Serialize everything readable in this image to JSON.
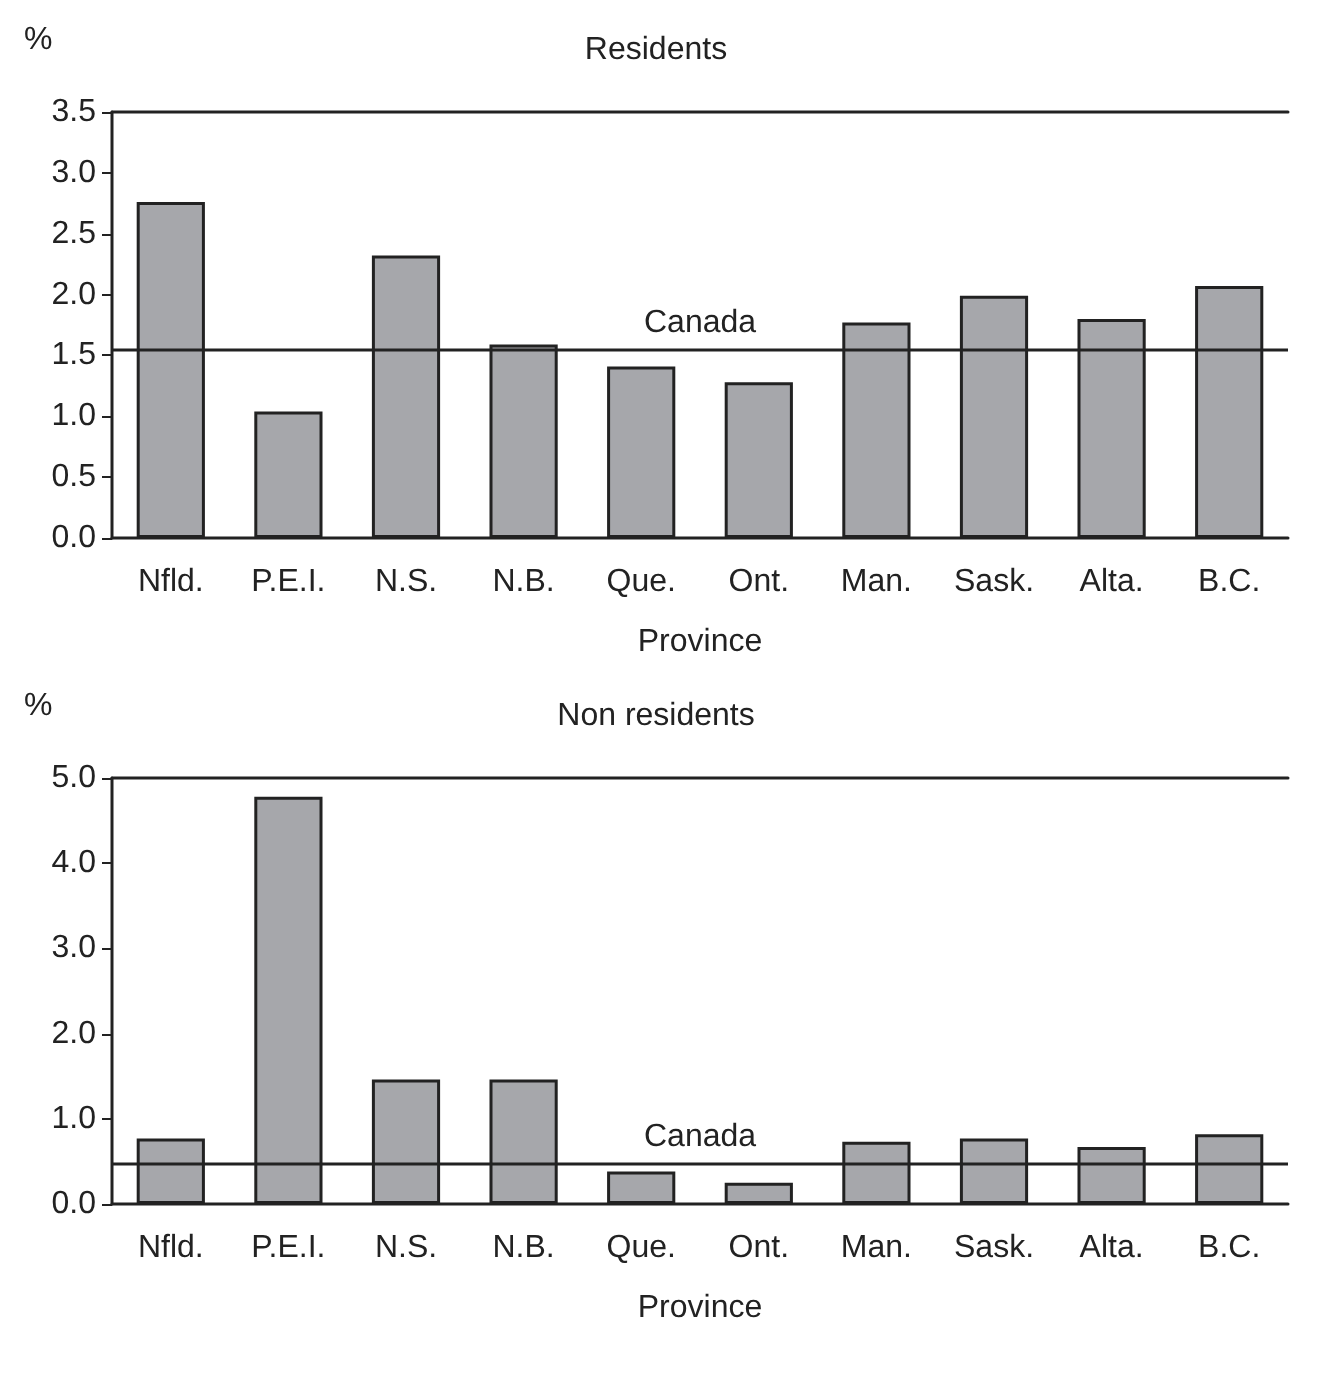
{
  "chart_data": [
    {
      "type": "bar",
      "title": "Residents",
      "xlabel": "Province",
      "ylabel": "%",
      "categories": [
        "Nfld.",
        "P.E.I.",
        "N.S.",
        "N.B.",
        "Que.",
        "Ont.",
        "Man.",
        "Sask.",
        "Alta.",
        "B.C."
      ],
      "values": [
        2.76,
        1.04,
        2.32,
        1.59,
        1.41,
        1.28,
        1.77,
        1.99,
        1.8,
        2.07
      ],
      "color": "#a6a7ab",
      "ylim": [
        0,
        3.5
      ],
      "yticks": [
        {
          "value": 0,
          "label": "0.0"
        },
        {
          "value": 0.5,
          "label": "0.5"
        },
        {
          "value": 1,
          "label": "1.0"
        },
        {
          "value": 1.5,
          "label": "1.5"
        },
        {
          "value": 2,
          "label": "2.0"
        },
        {
          "value": 2.5,
          "label": "2.5"
        },
        {
          "value": 3,
          "label": "3.0"
        },
        {
          "value": 3.5,
          "label": "3.5"
        }
      ],
      "ref_lines": [
        {
          "axis": "y",
          "value": 1.55,
          "label": "Canada"
        }
      ],
      "grid": false
    },
    {
      "type": "bar",
      "title": "Non residents",
      "xlabel": "Province",
      "ylabel": "%",
      "categories": [
        "Nfld.",
        "P.E.I.",
        "N.S.",
        "N.B.",
        "Que.",
        "Ont.",
        "Man.",
        "Sask.",
        "Alta.",
        "B.C."
      ],
      "values": [
        0.77,
        4.78,
        1.46,
        1.46,
        0.38,
        0.25,
        0.73,
        0.77,
        0.67,
        0.82
      ],
      "color": "#a6a7ab",
      "ylim": [
        0,
        5
      ],
      "yticks": [
        {
          "value": 0,
          "label": "0.0"
        },
        {
          "value": 1,
          "label": "1.0"
        },
        {
          "value": 2,
          "label": "2.0"
        },
        {
          "value": 3,
          "label": "3.0"
        },
        {
          "value": 4,
          "label": "4.0"
        },
        {
          "value": 5,
          "label": "5.0"
        }
      ],
      "ref_lines": [
        {
          "axis": "y",
          "value": 0.48,
          "label": "Canada"
        }
      ],
      "grid": false
    }
  ]
}
